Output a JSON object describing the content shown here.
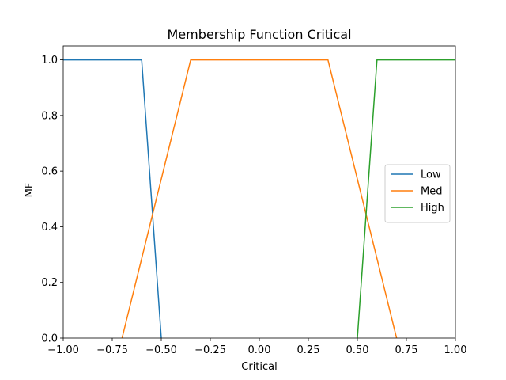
{
  "chart_data": {
    "type": "line",
    "title": "Membership Function Critical",
    "xlabel": "Critical",
    "ylabel": "MF",
    "xlim": [
      -1.0,
      1.0
    ],
    "ylim": [
      0.0,
      1.05
    ],
    "xticks": [
      -1.0,
      -0.75,
      -0.5,
      -0.25,
      0.0,
      0.25,
      0.5,
      0.75,
      1.0
    ],
    "xtick_labels": [
      "−1.00",
      "−0.75",
      "−0.50",
      "−0.25",
      "0.00",
      "0.25",
      "0.50",
      "0.75",
      "1.00"
    ],
    "yticks": [
      0.0,
      0.2,
      0.4,
      0.6,
      0.8,
      1.0
    ],
    "ytick_labels": [
      "0.0",
      "0.2",
      "0.4",
      "0.6",
      "0.8",
      "1.0"
    ],
    "grid": false,
    "legend_position": "center-right",
    "series": [
      {
        "name": "Low",
        "color": "#1f77b4",
        "x": [
          -1.0,
          -0.6,
          -0.5
        ],
        "y": [
          1.0,
          1.0,
          0.0
        ]
      },
      {
        "name": "Med",
        "color": "#ff7f0e",
        "x": [
          -0.7,
          -0.35,
          0.35,
          0.7
        ],
        "y": [
          0.0,
          1.0,
          1.0,
          0.0
        ]
      },
      {
        "name": "High",
        "color": "#2ca02c",
        "x": [
          0.5,
          0.6,
          1.0,
          1.0
        ],
        "y": [
          0.0,
          1.0,
          1.0,
          0.0
        ]
      }
    ]
  }
}
